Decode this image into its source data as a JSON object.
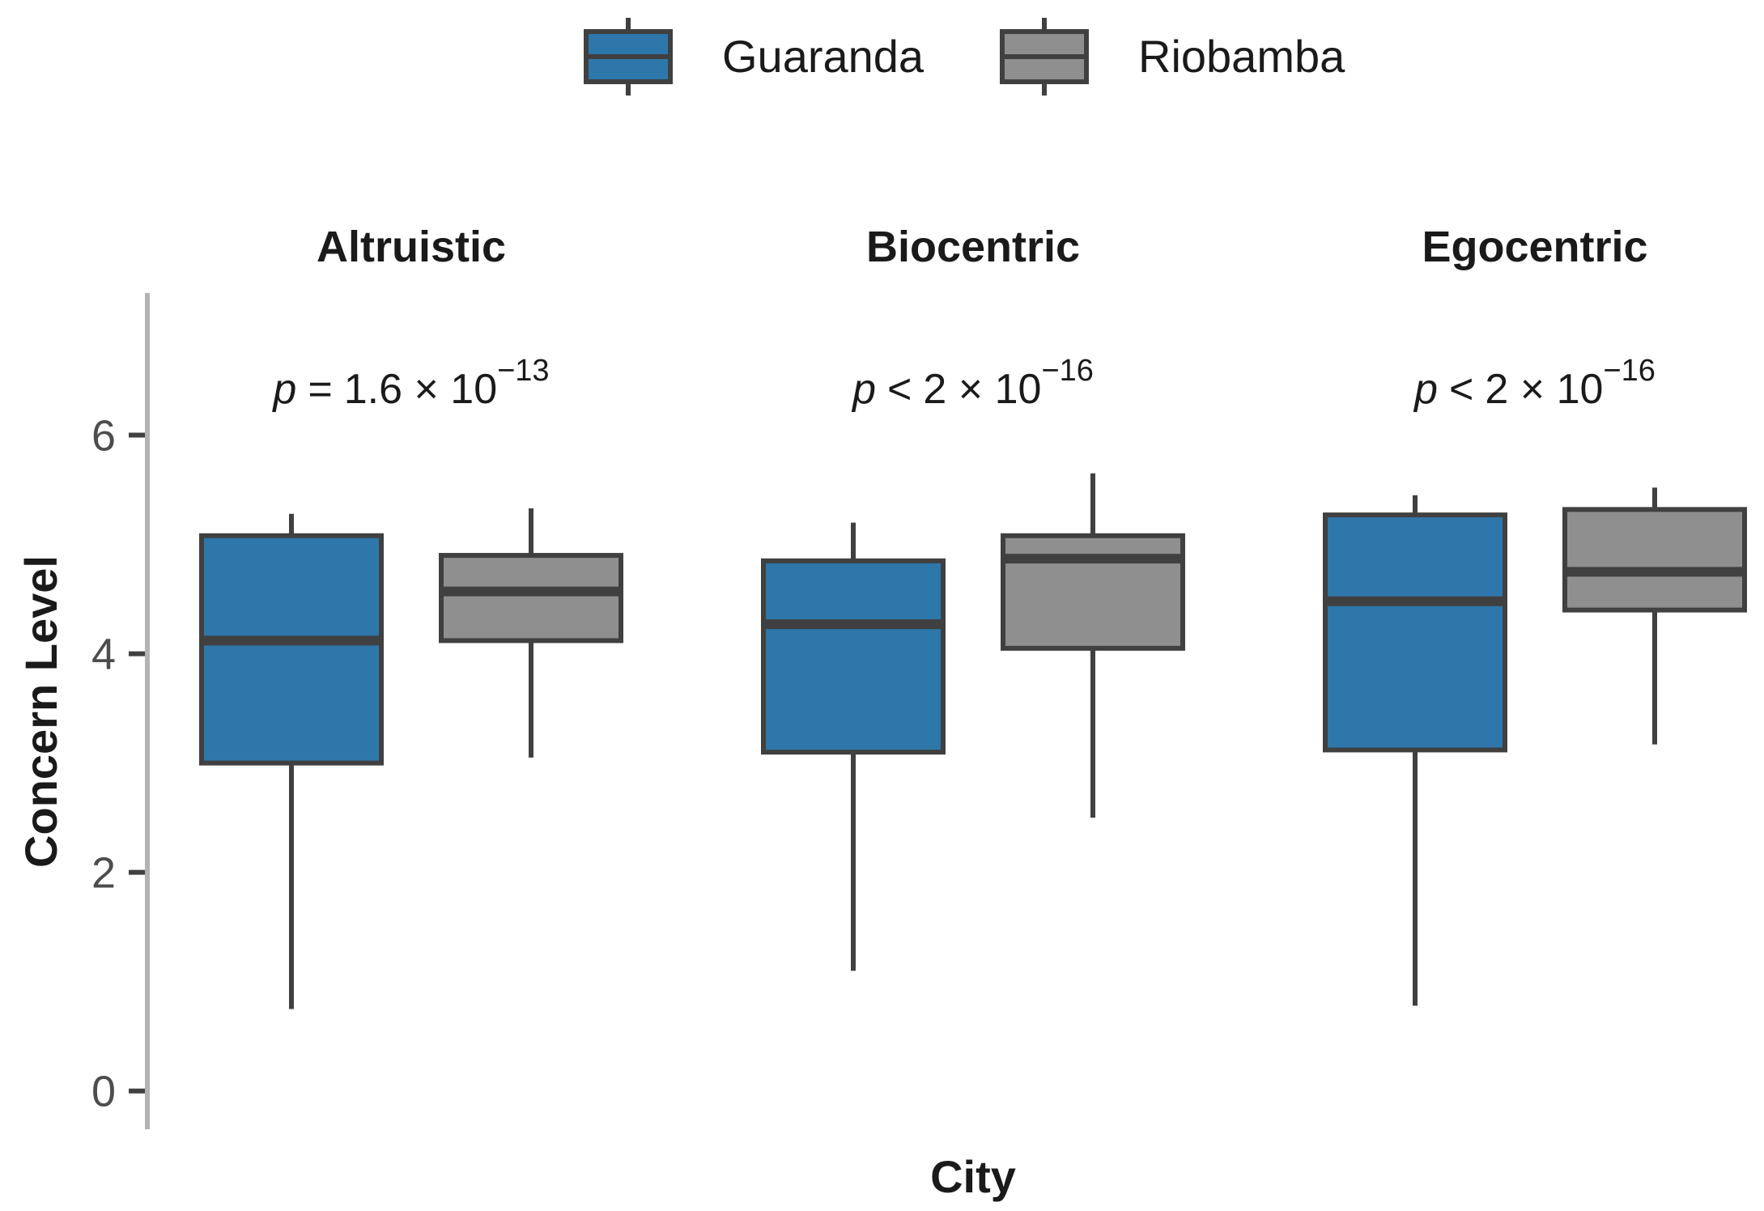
{
  "chart_data": {
    "type": "box",
    "xlabel": "City",
    "ylabel": "Concern Level",
    "yticks": [
      0,
      2,
      4,
      6
    ],
    "ylim": [
      -0.35,
      7.3
    ],
    "legend": {
      "position": "top",
      "entries": [
        {
          "name": "Guaranda",
          "color": "#2e77aa"
        },
        {
          "name": "Riobamba",
          "color": "#8f8f8f"
        }
      ]
    },
    "facets": [
      {
        "title": "Altruistic",
        "p_label": {
          "symbol": "p",
          "op": "=",
          "base": "1.6 × 10",
          "exp": "−13"
        },
        "boxes": [
          {
            "group": "Guaranda",
            "whisker_low": 0.75,
            "q1": 3.0,
            "median": 4.12,
            "q3": 5.08,
            "whisker_high": 5.28
          },
          {
            "group": "Riobamba",
            "whisker_low": 3.05,
            "q1": 4.12,
            "median": 4.57,
            "q3": 4.9,
            "whisker_high": 5.33
          }
        ]
      },
      {
        "title": "Biocentric",
        "p_label": {
          "symbol": "p",
          "op": "<",
          "base": "2 × 10",
          "exp": "−16"
        },
        "boxes": [
          {
            "group": "Guaranda",
            "whisker_low": 1.1,
            "q1": 3.1,
            "median": 4.27,
            "q3": 4.85,
            "whisker_high": 5.2
          },
          {
            "group": "Riobamba",
            "whisker_low": 2.5,
            "q1": 4.05,
            "median": 4.87,
            "q3": 5.08,
            "whisker_high": 5.65
          }
        ]
      },
      {
        "title": "Egocentric",
        "p_label": {
          "symbol": "p",
          "op": "<",
          "base": "2 × 10",
          "exp": "−16"
        },
        "boxes": [
          {
            "group": "Guaranda",
            "whisker_low": 0.78,
            "q1": 3.12,
            "median": 4.48,
            "q3": 5.27,
            "whisker_high": 5.45
          },
          {
            "group": "Riobamba",
            "whisker_low": 3.17,
            "q1": 4.4,
            "median": 4.75,
            "q3": 5.32,
            "whisker_high": 5.52
          }
        ]
      }
    ]
  }
}
